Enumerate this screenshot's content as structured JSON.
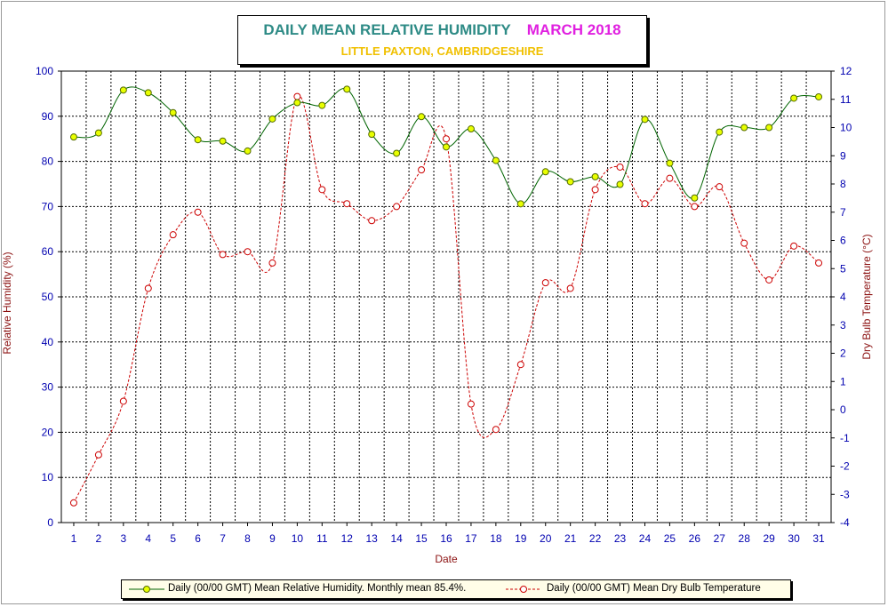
{
  "title": {
    "main": "DAILY MEAN RELATIVE HUMIDITY",
    "month": "MARCH 2018",
    "subtitle": "LITTLE PAXTON, CAMBRIDGESHIRE"
  },
  "colors": {
    "title_main": "#2e8b86",
    "title_month": "#e020e0",
    "subtitle": "#f0c000",
    "axis_ticks": "#0000b0",
    "axis_titles": "#8b1010",
    "humidity_line": "#006400",
    "humidity_marker_fill": "#e8ff00",
    "temp_line": "#cc0000",
    "legend_bg": "#fffde8"
  },
  "chart_data": {
    "type": "line",
    "xlabel": "Date",
    "ylabel_left": "Relative Humidity (%)",
    "ylabel_right": "Dry Bulb Temperature (°C)",
    "x": [
      1,
      2,
      3,
      4,
      5,
      6,
      7,
      8,
      9,
      10,
      11,
      12,
      13,
      14,
      15,
      16,
      17,
      18,
      19,
      20,
      21,
      22,
      23,
      24,
      25,
      26,
      27,
      28,
      29,
      30,
      31
    ],
    "x_range": [
      0.5,
      31.5
    ],
    "y_left_range": [
      0,
      100
    ],
    "y_left_ticks": [
      0,
      10,
      20,
      30,
      40,
      50,
      60,
      70,
      80,
      90,
      100
    ],
    "y_right_range": [
      -4,
      12
    ],
    "y_right_ticks": [
      -4,
      -3,
      -2,
      -1,
      0,
      1,
      2,
      3,
      4,
      5,
      6,
      7,
      8,
      9,
      10,
      11,
      12
    ],
    "grid": true,
    "legend_position": "bottom",
    "series": [
      {
        "name": "Daily (00/00 GMT) Mean Relative Humidity. Monthly mean 85.4%.",
        "axis": "left",
        "style": "solid",
        "values": [
          85.4,
          86.3,
          95.8,
          95.2,
          90.8,
          84.8,
          84.5,
          82.3,
          89.4,
          93.0,
          92.4,
          96.0,
          86.0,
          81.8,
          89.9,
          83.2,
          87.2,
          80.2,
          70.6,
          77.7,
          75.5,
          76.6,
          74.9,
          89.3,
          79.6,
          71.9,
          86.5,
          87.5,
          87.5,
          94.0,
          94.3
        ]
      },
      {
        "name": "Daily (00/00 GMT) Mean Dry Bulb Temperature",
        "axis": "right",
        "style": "dashed",
        "values": [
          -3.3,
          -1.6,
          0.3,
          4.3,
          6.2,
          7.0,
          5.5,
          5.6,
          5.2,
          11.1,
          7.8,
          7.3,
          6.7,
          7.2,
          8.5,
          9.6,
          0.2,
          -0.7,
          1.6,
          4.5,
          4.3,
          7.8,
          8.6,
          7.3,
          8.2,
          7.2,
          7.9,
          5.9,
          4.6,
          5.8,
          5.2
        ]
      }
    ]
  }
}
